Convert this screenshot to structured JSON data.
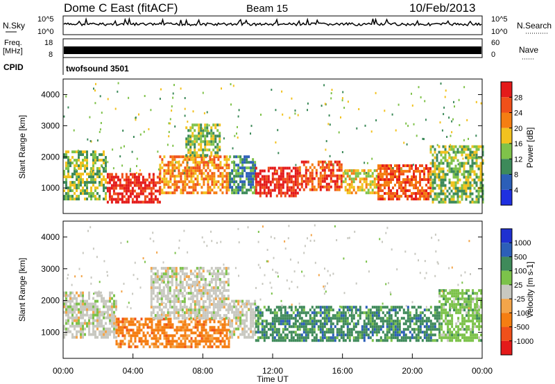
{
  "header": {
    "station": "Dome C East (fitACF)",
    "beam": "Beam 15",
    "date": "10/Feb/2013"
  },
  "noise_panel": {
    "left_label": "N.Sky",
    "right_label": "N.Search",
    "ticks_left": [
      "10^5",
      "10^0"
    ],
    "ticks_right": [
      "10^5",
      "10^0"
    ]
  },
  "freq_panel": {
    "left_label_line1": "Freq.",
    "left_label_line2": "[MHz]",
    "right_label": "Nave",
    "ticks_left": [
      "18",
      "8"
    ],
    "ticks_right": [
      "60",
      "0"
    ]
  },
  "cpid_panel": {
    "label": "CPID",
    "value": "twofsound 3501"
  },
  "x_axis": {
    "label": "Time UT",
    "ticks": [
      "00:00",
      "04:00",
      "08:00",
      "12:00",
      "16:00",
      "20:00",
      "00:00"
    ]
  },
  "colors": {
    "power": [
      "#1f30e0",
      "#2c5fb8",
      "#3d8a5a",
      "#7fc24a",
      "#f2c21f",
      "#f57e12",
      "#f0501a",
      "#e41a1a"
    ],
    "velocity": [
      "#e41a1a",
      "#f0501a",
      "#f57e12",
      "#f3a54a",
      "#c8c8c0",
      "#7cc24a",
      "#3f8a5a",
      "#2c5fb8",
      "#1f30d0"
    ]
  },
  "chart_data": [
    {
      "type": "heatmap",
      "title": "Power",
      "xlabel": "Time UT",
      "ylabel": "Slant Range [km]",
      "xlim": [
        0,
        24
      ],
      "ylim": [
        180,
        4500
      ],
      "yticks": [
        1000,
        2000,
        3000,
        4000
      ],
      "colorbar": {
        "label": "Power [dB]",
        "range": [
          0,
          32
        ],
        "tick_values": [
          4,
          8,
          12,
          16,
          20,
          24,
          28
        ],
        "tick_labels": [
          "4",
          "8",
          "12",
          "16",
          "20",
          "24",
          "28"
        ]
      },
      "bands": [
        {
          "t_start": 0.0,
          "t_end": 2.5,
          "range_min": 600,
          "range_max": 2200,
          "level": 12
        },
        {
          "t_start": 2.5,
          "t_end": 5.5,
          "range_min": 500,
          "range_max": 1400,
          "level": 26
        },
        {
          "t_start": 5.5,
          "t_end": 9.5,
          "range_min": 800,
          "range_max": 2000,
          "level": 18
        },
        {
          "t_start": 7.0,
          "t_end": 9.0,
          "range_min": 2000,
          "range_max": 3000,
          "level": 10
        },
        {
          "t_start": 9.5,
          "t_end": 11.0,
          "range_min": 800,
          "range_max": 2000,
          "level": 8
        },
        {
          "t_start": 11.0,
          "t_end": 13.5,
          "range_min": 700,
          "range_max": 1600,
          "level": 28
        },
        {
          "t_start": 13.5,
          "t_end": 16.0,
          "range_min": 900,
          "range_max": 1800,
          "level": 24
        },
        {
          "t_start": 16.0,
          "t_end": 18.0,
          "range_min": 800,
          "range_max": 1600,
          "level": 16
        },
        {
          "t_start": 18.0,
          "t_end": 21.0,
          "range_min": 600,
          "range_max": 1700,
          "level": 22
        },
        {
          "t_start": 21.0,
          "t_end": 24.0,
          "range_min": 500,
          "range_max": 2300,
          "level": 12
        }
      ]
    },
    {
      "type": "heatmap",
      "title": "Velocity",
      "xlabel": "Time UT",
      "ylabel": "Slant Range [km]",
      "xlim": [
        0,
        24
      ],
      "ylim": [
        180,
        4500
      ],
      "yticks": [
        1000,
        2000,
        3000,
        4000
      ],
      "colorbar": {
        "label": "Velocity [m s-1]",
        "tick_labels": [
          "-1000",
          "-500",
          "-100",
          "-25",
          "25",
          "100",
          "500",
          "1000"
        ]
      },
      "bands": [
        {
          "t_start": 0.0,
          "t_end": 3.0,
          "range_min": 800,
          "range_max": 2200,
          "class": 4
        },
        {
          "t_start": 3.0,
          "t_end": 9.5,
          "range_min": 500,
          "range_max": 1400,
          "class": 2
        },
        {
          "t_start": 5.0,
          "t_end": 9.5,
          "range_min": 1400,
          "range_max": 3000,
          "class": 4
        },
        {
          "t_start": 9.5,
          "t_end": 11.0,
          "range_min": 800,
          "range_max": 2000,
          "class": 4
        },
        {
          "t_start": 11.0,
          "t_end": 21.5,
          "range_min": 700,
          "range_max": 1800,
          "class": 6
        },
        {
          "t_start": 21.5,
          "t_end": 24.0,
          "range_min": 700,
          "range_max": 2300,
          "class": 5
        }
      ]
    }
  ]
}
